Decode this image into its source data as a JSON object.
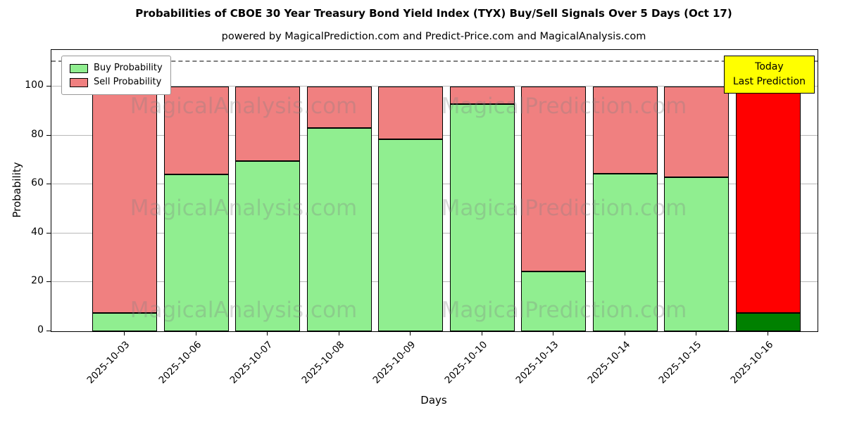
{
  "title": "Probabilities of CBOE 30 Year Treasury Bond Yield Index (TYX) Buy/Sell Signals Over 5 Days (Oct 17)",
  "subtitle": "powered by MagicalPrediction.com and Predict-Price.com and MagicalAnalysis.com",
  "annotation": {
    "line1": "Today",
    "line2": "Last Prediction",
    "bg_color": "#ffff00"
  },
  "legend": [
    {
      "label": "Buy Probability",
      "color": "#90ee90"
    },
    {
      "label": "Sell Probability",
      "color": "#f08080"
    }
  ],
  "watermark": {
    "texts": [
      "MagicalAnalysis.com",
      "MagicalPrediction.com"
    ],
    "color": "rgba(128,128,128,0.30)"
  },
  "chart_data": {
    "type": "bar",
    "stacked": true,
    "title": "Probabilities of CBOE 30 Year Treasury Bond Yield Index (TYX) Buy/Sell Signals Over 5 Days (Oct 17)",
    "xlabel": "Days",
    "ylabel": "Probability",
    "categories": [
      "2025-10-03",
      "2025-10-06",
      "2025-10-07",
      "2025-10-08",
      "2025-10-09",
      "2025-10-10",
      "2025-10-13",
      "2025-10-14",
      "2025-10-15",
      "2025-10-16"
    ],
    "series": [
      {
        "name": "Buy Probability",
        "color": "#90ee90",
        "last_color": "#008000",
        "values": [
          7.5,
          64,
          69.5,
          83,
          78.5,
          93,
          24.5,
          64.5,
          63,
          7.5
        ]
      },
      {
        "name": "Sell Probability",
        "color": "#f08080",
        "last_color": "#ff0000",
        "values": [
          92.5,
          36,
          30.5,
          17,
          21.5,
          7,
          75.5,
          35.5,
          37,
          92.5
        ]
      }
    ],
    "ylim": [
      0,
      115
    ],
    "yticks": [
      0,
      20,
      40,
      60,
      80,
      100
    ],
    "dashed_line_y": 110,
    "grid": true,
    "legend_position": "upper left"
  }
}
